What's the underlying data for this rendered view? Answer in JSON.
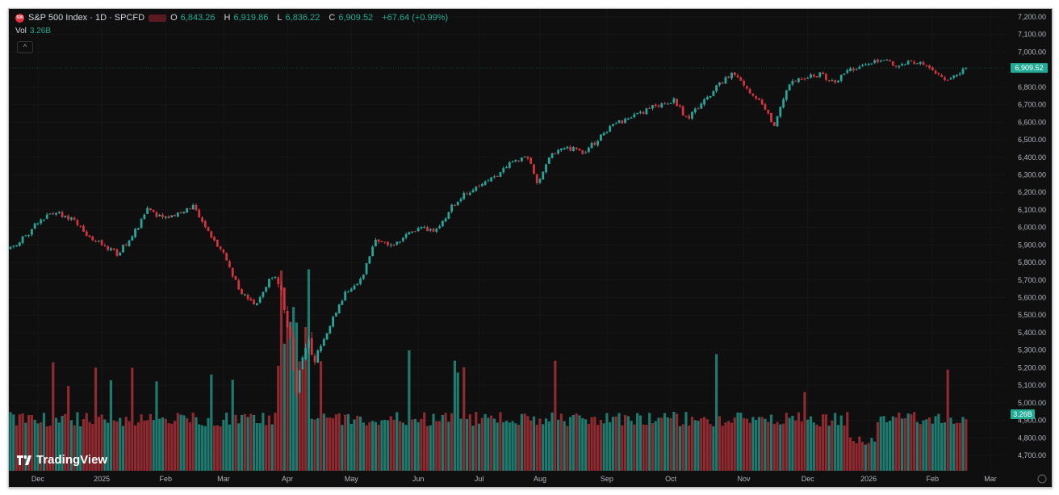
{
  "header": {
    "title": "S&P 500 Index · 1D · SPCFD",
    "ohlc": {
      "o_label": "O",
      "o": "6,843.26",
      "h_label": "H",
      "h": "6,919.86",
      "l_label": "L",
      "l": "6,836.22",
      "c_label": "C",
      "c": "6,909.52",
      "change": "+67.64 (+0.99%)"
    },
    "vol_label": "Vol",
    "vol_value": "3.26B",
    "collapse_icon": "chevron-up-icon"
  },
  "brand": "TradingView",
  "colors": {
    "up": "#26a69a",
    "down": "#d1343f",
    "vol_up": "#1e7a6e",
    "vol_down": "#8e2a30",
    "bg": "#0f0f0f",
    "axis_text": "#b2b5be",
    "price_tag": "#22ab94"
  },
  "chart_data": {
    "type": "candlestick",
    "title": "S&P 500 Index · 1D · SPCFD",
    "ylim": [
      4650,
      7250
    ],
    "y_ticks": [
      "7,200.00",
      "7,100.00",
      "7,000.00",
      "6,800.00",
      "6,700.00",
      "6,600.00",
      "6,500.00",
      "6,400.00",
      "6,300.00",
      "6,200.00",
      "6,100.00",
      "6,000.00",
      "5,900.00",
      "5,800.00",
      "5,700.00",
      "5,600.00",
      "5,500.00",
      "5,400.00",
      "5,300.00",
      "5,200.00",
      "5,100.00",
      "5,000.00",
      "4,900.00",
      "4,800.00",
      "4,700.00"
    ],
    "y_tick_values": [
      7200,
      7100,
      7000,
      6800,
      6700,
      6600,
      6500,
      6400,
      6300,
      6200,
      6100,
      6000,
      5900,
      5800,
      5700,
      5600,
      5500,
      5400,
      5300,
      5200,
      5100,
      5000,
      4900,
      4800,
      4700
    ],
    "last_price": 6909.52,
    "last_price_label": "6,909.52",
    "volume_label": "3.26B",
    "trading_days": 315,
    "x_ticks": [
      {
        "label": "Dec",
        "day": 9
      },
      {
        "label": "2025",
        "day": 30
      },
      {
        "label": "Feb",
        "day": 51
      },
      {
        "label": "Mar",
        "day": 70
      },
      {
        "label": "Apr",
        "day": 91
      },
      {
        "label": "May",
        "day": 112
      },
      {
        "label": "Jun",
        "day": 134
      },
      {
        "label": "Jul",
        "day": 154
      },
      {
        "label": "Aug",
        "day": 174
      },
      {
        "label": "Sep",
        "day": 196
      },
      {
        "label": "Oct",
        "day": 217
      },
      {
        "label": "Nov",
        "day": 241
      },
      {
        "label": "Dec",
        "day": 262
      },
      {
        "label": "2026",
        "day": 282
      },
      {
        "label": "Feb",
        "day": 303
      },
      {
        "label": "Mar",
        "day": 322
      }
    ],
    "close_anchors": [
      [
        0,
        5880
      ],
      [
        5,
        5950
      ],
      [
        10,
        6050
      ],
      [
        15,
        6080
      ],
      [
        20,
        6050
      ],
      [
        25,
        5960
      ],
      [
        30,
        5900
      ],
      [
        35,
        5850
      ],
      [
        40,
        5950
      ],
      [
        45,
        6100
      ],
      [
        50,
        6050
      ],
      [
        55,
        6080
      ],
      [
        60,
        6120
      ],
      [
        65,
        5980
      ],
      [
        70,
        5850
      ],
      [
        75,
        5650
      ],
      [
        80,
        5550
      ],
      [
        85,
        5700
      ],
      [
        88,
        5720
      ],
      [
        91,
        5450
      ],
      [
        94,
        5100
      ],
      [
        97,
        5350
      ],
      [
        100,
        5250
      ],
      [
        105,
        5450
      ],
      [
        110,
        5620
      ],
      [
        115,
        5700
      ],
      [
        120,
        5920
      ],
      [
        125,
        5900
      ],
      [
        130,
        5950
      ],
      [
        135,
        6000
      ],
      [
        140,
        5980
      ],
      [
        145,
        6120
      ],
      [
        150,
        6200
      ],
      [
        155,
        6250
      ],
      [
        160,
        6300
      ],
      [
        165,
        6380
      ],
      [
        170,
        6400
      ],
      [
        173,
        6250
      ],
      [
        178,
        6420
      ],
      [
        183,
        6460
      ],
      [
        188,
        6420
      ],
      [
        193,
        6500
      ],
      [
        198,
        6580
      ],
      [
        203,
        6620
      ],
      [
        208,
        6660
      ],
      [
        213,
        6700
      ],
      [
        218,
        6730
      ],
      [
        222,
        6620
      ],
      [
        227,
        6700
      ],
      [
        232,
        6800
      ],
      [
        237,
        6880
      ],
      [
        242,
        6790
      ],
      [
        247,
        6700
      ],
      [
        251,
        6580
      ],
      [
        256,
        6820
      ],
      [
        261,
        6850
      ],
      [
        266,
        6870
      ],
      [
        271,
        6830
      ],
      [
        276,
        6900
      ],
      [
        281,
        6940
      ],
      [
        286,
        6960
      ],
      [
        291,
        6930
      ],
      [
        296,
        6950
      ],
      [
        301,
        6920
      ],
      [
        305,
        6860
      ],
      [
        309,
        6840
      ],
      [
        314,
        6909.52
      ]
    ]
  }
}
